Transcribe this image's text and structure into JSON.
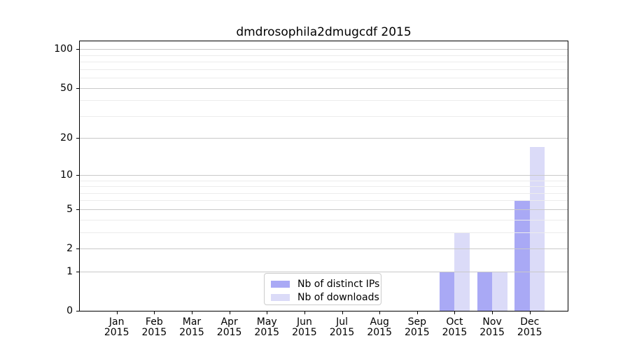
{
  "chart_data": {
    "type": "bar",
    "title": "dmdrosophila2dmugcdf 2015",
    "categories": [
      "Jan 2015",
      "Feb 2015",
      "Mar 2015",
      "Apr 2015",
      "May 2015",
      "Jun 2015",
      "Jul 2015",
      "Aug 2015",
      "Sep 2015",
      "Oct 2015",
      "Nov 2015",
      "Dec 2015"
    ],
    "x_tick_months": [
      "Jan",
      "Feb",
      "Mar",
      "Apr",
      "May",
      "Jun",
      "Jul",
      "Aug",
      "Sep",
      "Oct",
      "Nov",
      "Dec"
    ],
    "x_tick_year": "2015",
    "series": [
      {
        "name": "Nb of distinct IPs",
        "color": "#a9a9f5",
        "values": [
          0,
          0,
          0,
          0,
          0,
          0,
          0,
          0,
          0,
          1,
          1,
          6
        ]
      },
      {
        "name": "Nb of downloads",
        "color": "#dbdbf8",
        "values": [
          0,
          0,
          0,
          0,
          0,
          0,
          0,
          0,
          0,
          3,
          1,
          17
        ]
      }
    ],
    "yscale": "log1p",
    "ylim": [
      0,
      115
    ],
    "y_major_ticks": [
      0,
      1,
      2,
      5,
      10,
      20,
      50,
      100
    ],
    "y_minor_ticks": [
      3,
      4,
      6,
      7,
      8,
      9,
      30,
      40,
      60,
      70,
      80,
      90
    ],
    "grid": true,
    "grid_above_bars": true,
    "legend_position": "lower center",
    "colors": {
      "axis": "#000000",
      "major_grid": "#c9c9c9",
      "minor_grid": "#ececec",
      "background": "#ffffff"
    }
  }
}
